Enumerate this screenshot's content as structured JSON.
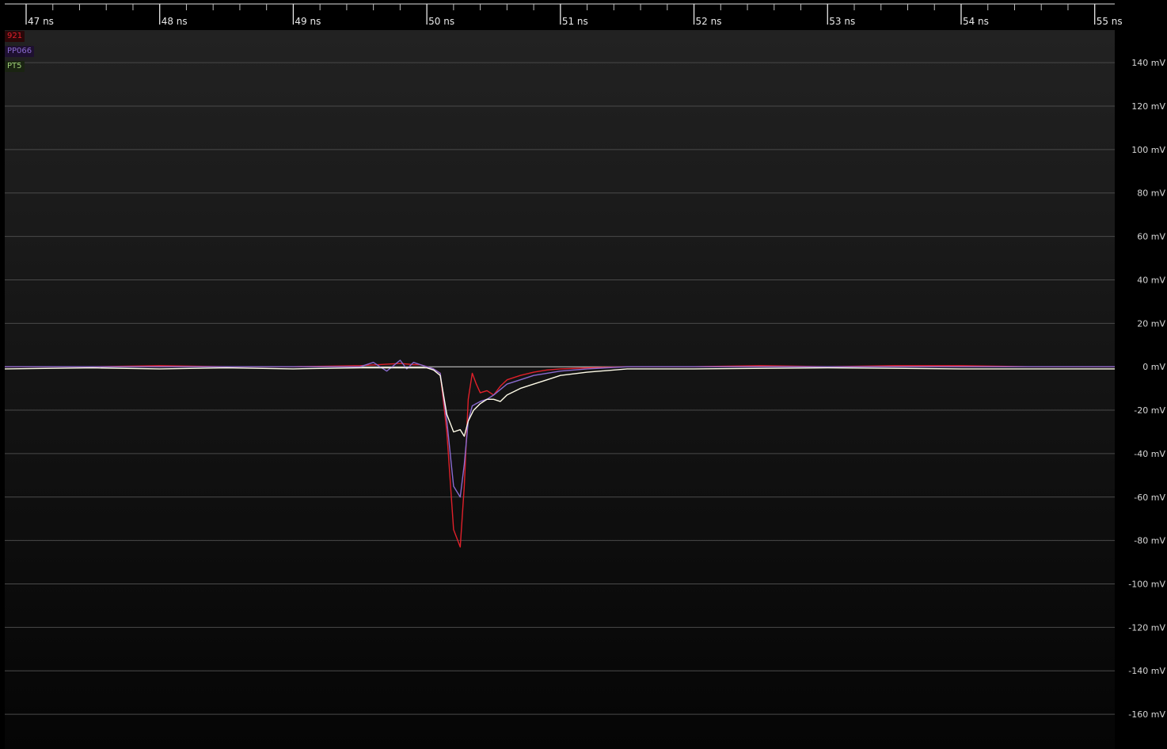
{
  "chart_data": {
    "type": "line",
    "title": "",
    "xlabel": "",
    "ylabel": "",
    "x_unit": "ns",
    "y_unit": "mV",
    "xlim": [
      46.84,
      55.15
    ],
    "ylim": [
      -176,
      155
    ],
    "grid": true,
    "legend_position": "top-left",
    "x_ticks": [
      "47 ns",
      "48 ns",
      "49 ns",
      "50 ns",
      "51 ns",
      "52 ns",
      "53 ns",
      "54 ns",
      "55 ns"
    ],
    "y_ticks": [
      "140 mV",
      "120 mV",
      "100 mV",
      "80 mV",
      "60 mV",
      "40 mV",
      "20 mV",
      "0 mV",
      "-20 mV",
      "-40 mV",
      "-60 mV",
      "-80 mV",
      "-100 mV",
      "-120 mV",
      "-140 mV",
      "-160 mV"
    ],
    "series": [
      {
        "name": "921",
        "color": "#e0202a",
        "x": [
          46.84,
          47.5,
          48.0,
          48.5,
          49.0,
          49.5,
          49.8,
          49.9,
          49.95,
          50.0,
          50.05,
          50.1,
          50.15,
          50.2,
          50.25,
          50.28,
          50.31,
          50.34,
          50.37,
          50.4,
          50.45,
          50.5,
          50.55,
          50.6,
          50.65,
          50.7,
          50.8,
          50.9,
          51.0,
          51.2,
          51.5,
          52.0,
          52.5,
          53.0,
          53.5,
          54.0,
          54.5,
          55.15
        ],
        "values": [
          0,
          0,
          0.5,
          0,
          0,
          0.5,
          1.5,
          1,
          1,
          0,
          -1,
          -3,
          -30,
          -75,
          -83,
          -55,
          -15,
          -3,
          -8,
          -12,
          -11,
          -13,
          -9,
          -6,
          -5,
          -4,
          -2.5,
          -1.5,
          -1,
          -0.5,
          0,
          0,
          0.5,
          0,
          0.5,
          0.5,
          0,
          0
        ]
      },
      {
        "name": "PP066",
        "color": "#8a6bd0",
        "x": [
          46.84,
          47.5,
          48.0,
          48.5,
          49.0,
          49.5,
          49.6,
          49.7,
          49.8,
          49.85,
          49.9,
          49.95,
          50.0,
          50.05,
          50.1,
          50.15,
          50.2,
          50.25,
          50.28,
          50.31,
          50.34,
          50.37,
          50.4,
          50.45,
          50.5,
          50.6,
          50.7,
          50.8,
          50.9,
          51.0,
          51.2,
          51.5,
          52.0,
          53.0,
          54.0,
          55.15
        ],
        "values": [
          0,
          0,
          0,
          0,
          0,
          0,
          2,
          -2,
          3,
          -1,
          2,
          1,
          0,
          -1,
          -3,
          -25,
          -55,
          -60,
          -45,
          -25,
          -18,
          -17,
          -16,
          -15,
          -13,
          -8,
          -6,
          -4,
          -3,
          -2,
          -1,
          0,
          0,
          0,
          0,
          0
        ]
      },
      {
        "name": "PT5",
        "color": "#fffce8",
        "x": [
          46.84,
          47.5,
          48.0,
          48.5,
          49.0,
          49.5,
          49.8,
          50.0,
          50.05,
          50.1,
          50.15,
          50.2,
          50.25,
          50.28,
          50.31,
          50.35,
          50.4,
          50.45,
          50.5,
          50.55,
          50.6,
          50.7,
          50.8,
          50.9,
          51.0,
          51.2,
          51.5,
          52.0,
          53.0,
          54.0,
          55.15
        ],
        "values": [
          -1,
          -0.5,
          -1,
          -0.5,
          -1,
          -0.5,
          -0.5,
          -0.5,
          -1.5,
          -4,
          -22,
          -30,
          -29,
          -32,
          -25,
          -20,
          -17,
          -15,
          -15,
          -16,
          -13,
          -10,
          -8,
          -6,
          -4,
          -2.5,
          -1,
          -1,
          -0.5,
          -1,
          -1
        ]
      }
    ]
  }
}
